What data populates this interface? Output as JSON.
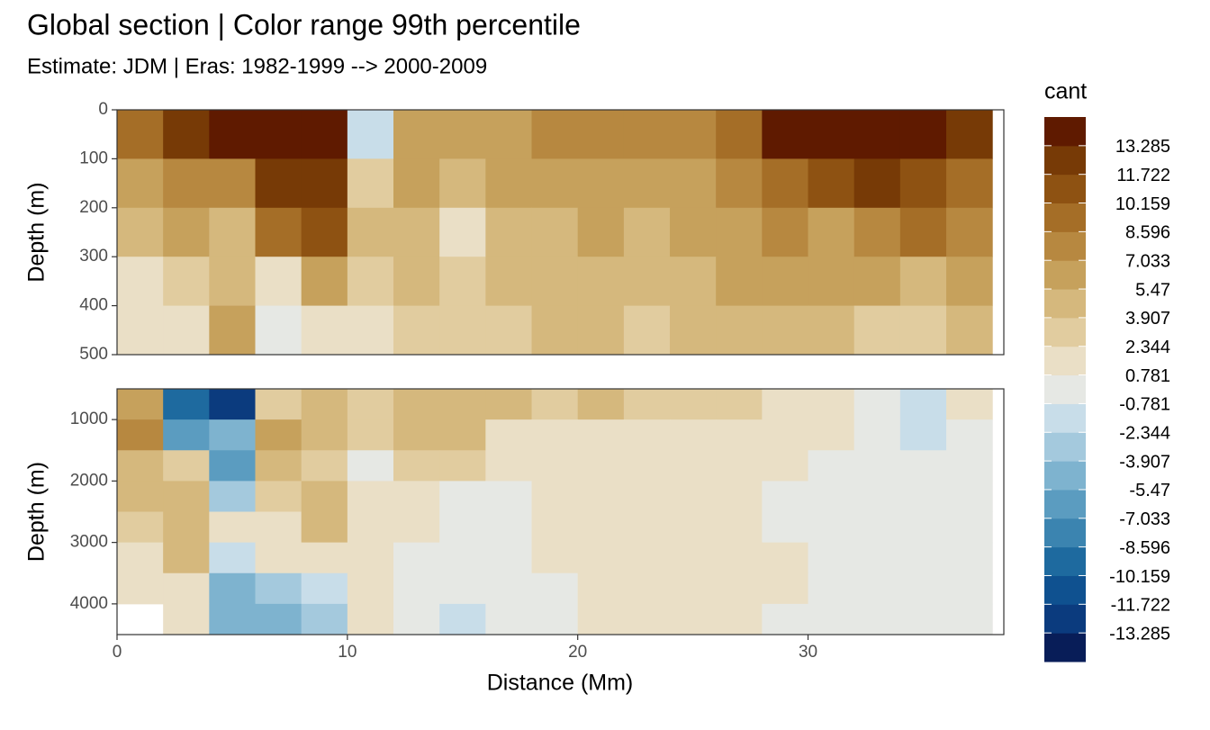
{
  "chart_data": [
    {
      "type": "heatmap",
      "title": "Global section | Color range 99th percentile",
      "subtitle": "Estimate: JDM  | Eras: 1982-1999 --> 2000-2009",
      "ylabel": "Depth (m)",
      "y_reversed": true,
      "x": [
        1,
        3,
        5,
        7,
        9,
        11,
        13,
        15,
        17,
        19,
        21,
        23,
        25,
        27,
        29,
        31,
        33,
        35,
        37
      ],
      "y": [
        50,
        150,
        250,
        350,
        450
      ],
      "z": [
        [
          9,
          12,
          14,
          14,
          14,
          -2,
          7,
          6,
          7,
          8,
          8,
          8,
          8,
          10,
          14,
          14,
          14,
          14,
          13
        ],
        [
          6,
          8,
          8,
          13,
          13,
          3,
          6,
          4,
          6,
          7,
          7,
          6,
          7,
          8,
          10,
          11,
          12,
          11,
          10
        ],
        [
          4,
          6,
          5,
          9,
          11,
          4,
          4,
          1,
          5,
          5,
          6,
          5,
          6,
          7,
          8,
          7,
          8,
          9,
          8
        ],
        [
          2,
          3,
          4,
          2,
          7,
          3,
          4,
          3,
          4,
          5,
          5,
          4,
          5,
          6,
          7,
          6,
          6,
          5,
          6
        ],
        [
          1,
          2,
          6,
          0,
          2,
          2,
          3,
          3,
          3,
          4,
          4,
          3,
          4,
          4,
          5,
          4,
          3,
          3,
          4
        ]
      ],
      "xlim": [
        0,
        38.5
      ],
      "ylim": [
        0,
        500
      ],
      "yticks": [
        0,
        100,
        200,
        300,
        400,
        500
      ],
      "colorbar": {
        "title": "cant",
        "breaks": [
          -13.285,
          -11.722,
          -10.159,
          -8.596,
          -7.033,
          -5.47,
          -3.907,
          -2.344,
          -0.781,
          0.781,
          2.344,
          3.907,
          5.47,
          7.033,
          8.596,
          10.159,
          11.722,
          13.285
        ],
        "colors": [
          "#081d58",
          "#0b3b7e",
          "#0f5190",
          "#1e6a9f",
          "#3b84b0",
          "#5b9cc0",
          "#7eb3cf",
          "#a4c9dd",
          "#c8dde9",
          "#e6e8e4",
          "#eadfc6",
          "#e1cc9f",
          "#d5b87d",
          "#c6a15c",
          "#b78840",
          "#a56e27",
          "#8e5212",
          "#773a06",
          "#5f1a00"
        ]
      }
    },
    {
      "type": "heatmap",
      "ylabel": "Depth (m)",
      "xlabel": "Distance (Mm)",
      "y_reversed": true,
      "x": [
        1,
        3,
        5,
        7,
        9,
        11,
        13,
        15,
        17,
        19,
        21,
        23,
        25,
        27,
        29,
        31,
        33,
        35,
        37
      ],
      "y": [
        750,
        1250,
        1750,
        2250,
        2750,
        3250,
        3750,
        4250
      ],
      "z": [
        [
          6,
          -10,
          -12,
          3,
          4,
          3,
          5,
          5,
          4,
          3,
          4,
          3,
          3,
          3,
          2,
          2,
          0,
          -1,
          1
        ],
        [
          8,
          -7,
          -5,
          6,
          4,
          3,
          4,
          4,
          2,
          2,
          2,
          2,
          2,
          2,
          1,
          1,
          0,
          -1,
          0
        ],
        [
          5,
          3,
          -6,
          4,
          3,
          0,
          3,
          3,
          1,
          2,
          2,
          1,
          2,
          1,
          1,
          0,
          0,
          0,
          0
        ],
        [
          4,
          4,
          -3,
          3,
          4,
          2,
          1,
          0,
          0,
          1,
          2,
          1,
          2,
          1,
          0,
          0,
          0,
          0,
          0
        ],
        [
          3,
          4,
          1,
          2,
          4,
          1,
          1,
          0,
          0,
          1,
          1,
          1,
          2,
          1,
          0,
          0,
          0,
          0,
          0
        ],
        [
          2,
          4,
          -2,
          1,
          2,
          1,
          0,
          0,
          0,
          1,
          1,
          1,
          1,
          1,
          1,
          0,
          0,
          0,
          0
        ],
        [
          2,
          2,
          -4,
          -3,
          -1,
          1,
          0,
          0,
          0,
          0,
          1,
          2,
          1,
          1,
          1,
          0,
          0,
          0,
          0
        ],
        [
          null,
          1,
          -5,
          -4,
          -3,
          1,
          0,
          -1,
          0,
          0,
          1,
          2,
          1,
          1,
          0,
          0,
          0,
          0,
          0
        ]
      ],
      "xlim": [
        0,
        38.5
      ],
      "ylim": [
        500,
        4500
      ],
      "xticks": [
        0,
        10,
        20,
        30
      ],
      "yticks": [
        1000,
        2000,
        3000,
        4000
      ]
    }
  ]
}
